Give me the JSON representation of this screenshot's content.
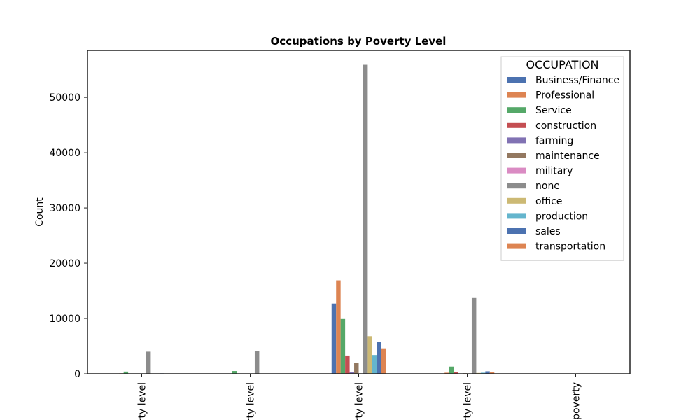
{
  "chart_data": {
    "type": "bar",
    "title": "Occupations by Poverty Level",
    "xlabel": "",
    "ylabel": "Count",
    "ylim": [
      0,
      58500
    ],
    "yticks": [
      0,
      10000,
      20000,
      30000,
      40000,
      50000
    ],
    "categories": [
      "rty level",
      "rty level",
      "rty level",
      "rty level",
      "poverty"
    ],
    "legend": {
      "title": "OCCUPATION",
      "position": "top-right"
    },
    "grid": false,
    "series": [
      {
        "name": "Business/Finance",
        "color": "#4c72b0",
        "values": [
          50,
          30,
          12700,
          60,
          0
        ]
      },
      {
        "name": "Professional",
        "color": "#dd8452",
        "values": [
          80,
          40,
          16900,
          200,
          0
        ]
      },
      {
        "name": "Service",
        "color": "#55a868",
        "values": [
          400,
          500,
          9900,
          1300,
          0
        ]
      },
      {
        "name": "construction",
        "color": "#c44e52",
        "values": [
          60,
          50,
          3300,
          300,
          0
        ]
      },
      {
        "name": "farming",
        "color": "#8172b3",
        "values": [
          20,
          10,
          300,
          40,
          0
        ]
      },
      {
        "name": "maintenance",
        "color": "#937860",
        "values": [
          30,
          30,
          1900,
          100,
          0
        ]
      },
      {
        "name": "military",
        "color": "#da8bc3",
        "values": [
          0,
          0,
          50,
          10,
          0
        ]
      },
      {
        "name": "none",
        "color": "#8c8c8c",
        "values": [
          4000,
          4100,
          55900,
          13700,
          10
        ]
      },
      {
        "name": "office",
        "color": "#ccb974",
        "values": [
          60,
          60,
          6800,
          150,
          0
        ]
      },
      {
        "name": "production",
        "color": "#64b5cd",
        "values": [
          50,
          50,
          3400,
          200,
          0
        ]
      },
      {
        "name": "sales",
        "color": "#4c72b0",
        "values": [
          80,
          60,
          5800,
          450,
          0
        ]
      },
      {
        "name": "transportation",
        "color": "#dd8452",
        "values": [
          60,
          60,
          4600,
          250,
          0
        ]
      }
    ]
  }
}
